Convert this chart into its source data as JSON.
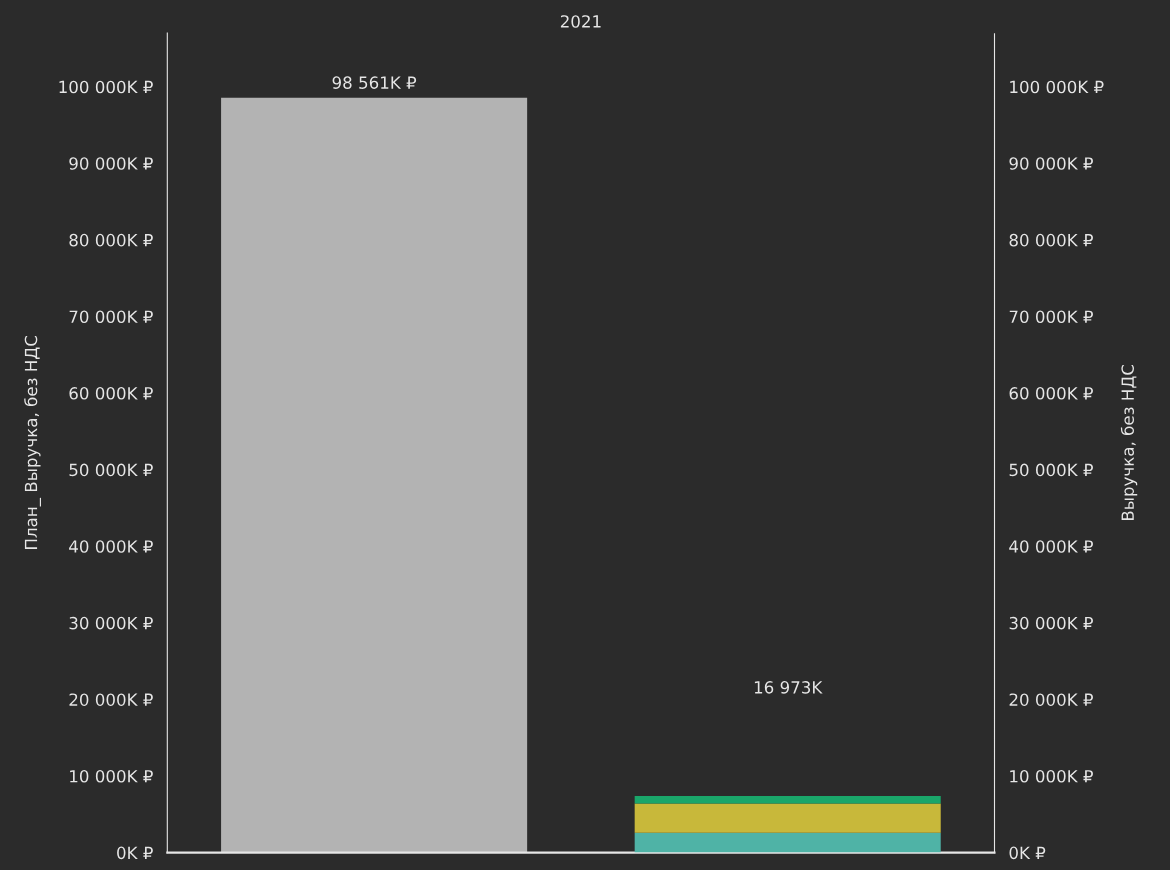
{
  "chart_data": {
    "type": "bar",
    "title": "2021",
    "ylabel": "План_ Выручка, без НДС",
    "y2label": "Выручка, без НДС",
    "categories": [
      null,
      null
    ],
    "stacked": true,
    "grid": false,
    "legend": false,
    "series": [
      {
        "color": "#b3b3b3",
        "values": [
          98561,
          null
        ],
        "axis": "y",
        "value_labels": [
          "98 561K ₽",
          null
        ]
      },
      {
        "color": "#4fb3a6",
        "values": [
          null,
          2600
        ],
        "axis": "y2"
      },
      {
        "color": "#c8b83a",
        "values": [
          null,
          3800
        ],
        "axis": "y2"
      },
      {
        "color": "#1aa66a",
        "values": [
          null,
          1000
        ],
        "axis": "y2"
      }
    ],
    "annotations": [
      "16 973K"
    ],
    "ylim": [
      0,
      107000
    ],
    "yticks": [
      {
        "value": 0,
        "label": "0K ₽"
      },
      {
        "value": 10000,
        "label": "10 000K ₽"
      },
      {
        "value": 20000,
        "label": "20 000K ₽"
      },
      {
        "value": 30000,
        "label": "30 000K ₽"
      },
      {
        "value": 40000,
        "label": "40 000K ₽"
      },
      {
        "value": 50000,
        "label": "50 000K ₽"
      },
      {
        "value": 60000,
        "label": "60 000K ₽"
      },
      {
        "value": 70000,
        "label": "70 000K ₽"
      },
      {
        "value": 80000,
        "label": "80 000K ₽"
      },
      {
        "value": 90000,
        "label": "90 000K ₽"
      },
      {
        "value": 100000,
        "label": "100 000K ₽"
      }
    ],
    "y2lim": [
      0,
      107000
    ],
    "y2ticks": [
      {
        "value": 0,
        "label": "0K ₽"
      },
      {
        "value": 10000,
        "label": "10 000K ₽"
      },
      {
        "value": 20000,
        "label": "20 000K ₽"
      },
      {
        "value": 30000,
        "label": "30 000K ₽"
      },
      {
        "value": 40000,
        "label": "40 000K ₽"
      },
      {
        "value": 50000,
        "label": "50 000K ₽"
      },
      {
        "value": 60000,
        "label": "60 000K ₽"
      },
      {
        "value": 70000,
        "label": "70 000K ₽"
      },
      {
        "value": 80000,
        "label": "80 000K ₽"
      },
      {
        "value": 90000,
        "label": "90 000K ₽"
      },
      {
        "value": 100000,
        "label": "100 000K ₽"
      }
    ]
  }
}
